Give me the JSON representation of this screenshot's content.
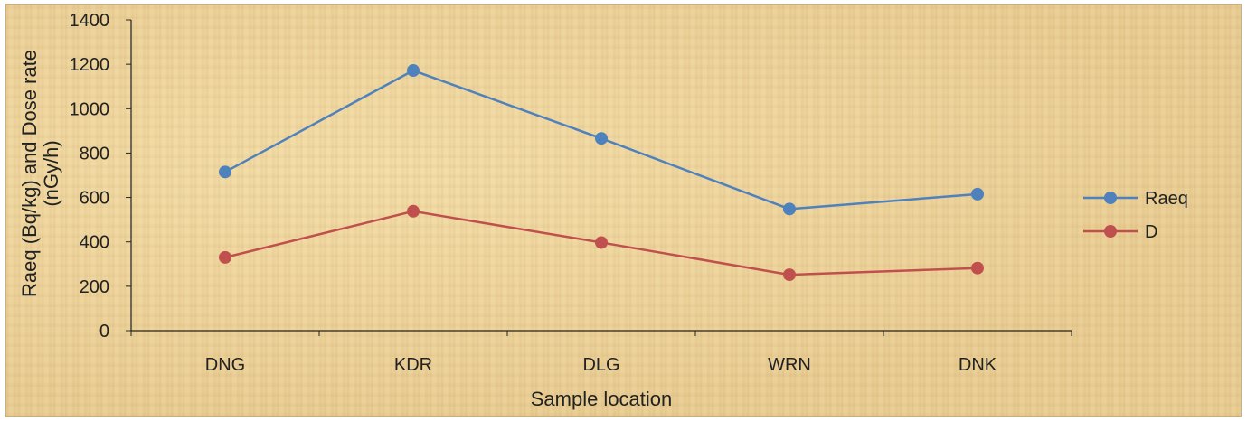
{
  "chart_data": {
    "type": "line",
    "categories": [
      "DNG",
      "KDR",
      "DLG",
      "WRN",
      "DNK"
    ],
    "series": [
      {
        "name": "Raeq",
        "values": [
          715,
          1172,
          866,
          548,
          615
        ],
        "color": "#4f81bd"
      },
      {
        "name": "D",
        "values": [
          330,
          538,
          397,
          252,
          282
        ],
        "color": "#c0504d"
      }
    ],
    "xlabel": "Sample location",
    "ylabel_line1": "Raeq (Bq/kg) and Dose rate",
    "ylabel_line2": "(nGy/h)",
    "ylim": [
      0,
      1400
    ],
    "yticks": [
      0,
      200,
      400,
      600,
      800,
      1000,
      1200,
      1400
    ],
    "grid": false,
    "legend_position": "right"
  }
}
